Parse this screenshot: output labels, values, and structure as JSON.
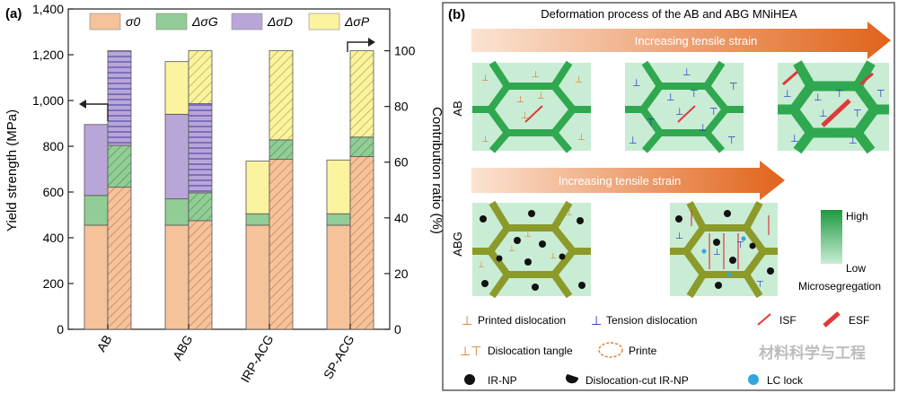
{
  "panel_a": {
    "label": "(a)",
    "ylabel_left": "Yield strength (MPa)",
    "ylabel_right": "Contribution ratio (%)",
    "legend": [
      "σ0",
      "ΔσG",
      "ΔσD",
      "ΔσP"
    ],
    "colors": {
      "s0": "#f5c29a",
      "g": "#92cc96",
      "d": "#b9a6d8",
      "p": "#fbf39e"
    },
    "chart_data": {
      "type": "bar",
      "categories": [
        "AB",
        "ABG",
        "IRP-ACG",
        "SP-ACG"
      ],
      "y_left": {
        "lim": [
          0,
          1400
        ],
        "ticks": [
          "0",
          "200",
          "400",
          "600",
          "800",
          "1,000",
          "1,200",
          "1,400"
        ]
      },
      "y_right": {
        "lim": [
          0,
          115
        ],
        "ticks": [
          "0",
          "20",
          "40",
          "60",
          "80",
          "100"
        ]
      },
      "yield_strength_stacked": [
        {
          "category": "AB",
          "sigma0": 455,
          "dG": 130,
          "dD": 310,
          "dP": 0
        },
        {
          "category": "ABG",
          "sigma0": 455,
          "dG": 115,
          "dD": 370,
          "dP": 230
        },
        {
          "category": "IRP-ACG",
          "sigma0": 455,
          "dG": 50,
          "dD": 0,
          "dP": 230
        },
        {
          "category": "SP-ACG",
          "sigma0": 455,
          "dG": 50,
          "dD": 0,
          "dP": 235
        }
      ],
      "contribution_ratio_stacked": [
        {
          "category": "AB",
          "sigma0": 51,
          "dG": 15,
          "dD": 34,
          "dP": 0
        },
        {
          "category": "ABG",
          "sigma0": 39,
          "dG": 10,
          "dD": 32,
          "dP": 19
        },
        {
          "category": "IRP-ACG",
          "sigma0": 61,
          "dG": 7,
          "dD": 0,
          "dP": 32
        },
        {
          "category": "SP-ACG",
          "sigma0": 62,
          "dG": 7,
          "dD": 0,
          "dP": 31
        }
      ]
    }
  },
  "panel_b": {
    "label": "(b)",
    "title": "Deformation process of the AB and ABG MNiHEA",
    "arrow_text": "Increasing tensile strain",
    "row_ab": "AB",
    "row_abg": "ABG",
    "scale": {
      "high": "High",
      "low": "Low",
      "label": "Microsegregation"
    },
    "legend": [
      "Printed dislocation",
      "Tension dislocation",
      "ISF",
      "ESF",
      "Dislocation tangle",
      "Printe",
      "IR-NP",
      "Dislocation-cut IR-NP",
      "LC lock"
    ],
    "watermark": "材料科学与工程"
  }
}
